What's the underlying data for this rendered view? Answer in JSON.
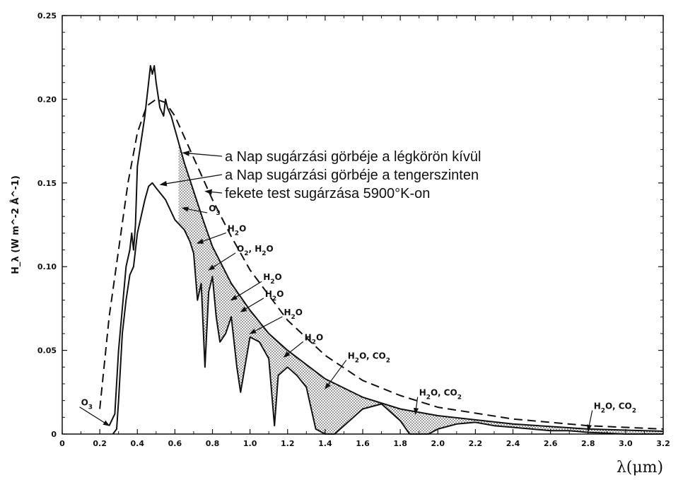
{
  "chart_data": {
    "type": "line",
    "xlabel": "λ(μm)",
    "ylabel": "H_λ (W m^-2 Å^-1)",
    "xlim": [
      0,
      3.2
    ],
    "ylim": [
      0,
      0.25
    ],
    "x_ticks": [
      "0",
      "0.2",
      "0.4",
      "0.6",
      "0.8",
      "1.0",
      "1.2",
      "1.4",
      "1.6",
      "1.8",
      "2.0",
      "2.2",
      "2.4",
      "2.6",
      "2.8",
      "3.0",
      "3.2"
    ],
    "y_ticks": [
      "0",
      "0.05",
      "0.10",
      "0.15",
      "0.20",
      "0.25"
    ],
    "legend": [
      "a Nap sugárzási görbéje a légkörön kívül",
      "a Nap sugárzási görbéje a tengerszinten",
      "fekete test sugárzása 5900°K-on"
    ],
    "series": [
      {
        "name": "a Nap sugárzási görbéje a légkörön kívül",
        "style": "solid",
        "x": [
          0.25,
          0.28,
          0.3,
          0.32,
          0.34,
          0.36,
          0.37,
          0.38,
          0.39,
          0.4,
          0.42,
          0.44,
          0.45,
          0.46,
          0.47,
          0.48,
          0.49,
          0.5,
          0.52,
          0.54,
          0.55,
          0.56,
          0.58,
          0.6,
          0.65,
          0.7,
          0.75,
          0.8,
          0.9,
          1.0,
          1.1,
          1.2,
          1.4,
          1.6,
          1.8,
          2.0,
          2.4,
          2.8,
          3.2
        ],
        "y": [
          0.005,
          0.012,
          0.05,
          0.075,
          0.1,
          0.11,
          0.12,
          0.11,
          0.125,
          0.16,
          0.175,
          0.19,
          0.2,
          0.21,
          0.22,
          0.215,
          0.22,
          0.21,
          0.195,
          0.19,
          0.2,
          0.195,
          0.19,
          0.182,
          0.162,
          0.145,
          0.128,
          0.112,
          0.09,
          0.074,
          0.06,
          0.05,
          0.033,
          0.022,
          0.015,
          0.011,
          0.006,
          0.003,
          0.0017
        ]
      },
      {
        "name": "a Nap sugárzási görbéje a tengerszinten",
        "style": "solid",
        "x": [
          0.27,
          0.29,
          0.3,
          0.32,
          0.34,
          0.36,
          0.38,
          0.4,
          0.42,
          0.44,
          0.46,
          0.48,
          0.5,
          0.55,
          0.6,
          0.65,
          0.68,
          0.7,
          0.72,
          0.74,
          0.76,
          0.78,
          0.8,
          0.82,
          0.84,
          0.87,
          0.9,
          0.93,
          0.95,
          0.98,
          1.0,
          1.05,
          1.1,
          1.13,
          1.15,
          1.2,
          1.25,
          1.3,
          1.35,
          1.4,
          1.45,
          1.5,
          1.6,
          1.7,
          1.8,
          1.85,
          1.9,
          1.95,
          2.0,
          2.1,
          2.2,
          2.3,
          2.4,
          2.5,
          2.6,
          2.7,
          2.8,
          2.9,
          3.0,
          3.2
        ],
        "y": [
          0.0,
          0.003,
          0.02,
          0.06,
          0.08,
          0.095,
          0.1,
          0.12,
          0.13,
          0.14,
          0.148,
          0.15,
          0.147,
          0.14,
          0.128,
          0.122,
          0.115,
          0.108,
          0.08,
          0.09,
          0.04,
          0.085,
          0.094,
          0.07,
          0.055,
          0.06,
          0.07,
          0.04,
          0.025,
          0.045,
          0.058,
          0.055,
          0.045,
          0.005,
          0.035,
          0.04,
          0.035,
          0.028,
          0.003,
          0.0,
          0.0,
          0.005,
          0.015,
          0.018,
          0.008,
          0.0,
          0.0,
          0.0,
          0.003,
          0.006,
          0.007,
          0.005,
          0.004,
          0.003,
          0.002,
          0.002,
          0.001,
          0.0005,
          0.0,
          0.0
        ]
      },
      {
        "name": "fekete test sugárzása 5900°K-on",
        "style": "dashed",
        "x": [
          0.2,
          0.25,
          0.3,
          0.35,
          0.4,
          0.45,
          0.5,
          0.55,
          0.6,
          0.7,
          0.8,
          0.9,
          1.0,
          1.2,
          1.4,
          1.6,
          1.8,
          2.0,
          2.4,
          2.8,
          3.2
        ],
        "y": [
          0.015,
          0.07,
          0.11,
          0.15,
          0.18,
          0.196,
          0.2,
          0.198,
          0.19,
          0.165,
          0.14,
          0.118,
          0.098,
          0.068,
          0.047,
          0.032,
          0.023,
          0.016,
          0.009,
          0.005,
          0.003
        ]
      }
    ],
    "annotations": [
      {
        "label": "O3",
        "x": 0.1,
        "y": 0.017,
        "arrow_to": [
          0.25,
          0.005
        ]
      },
      {
        "label": "O3",
        "x": 0.78,
        "y": 0.133,
        "arrow_to": [
          0.64,
          0.135
        ]
      },
      {
        "label": "H2O",
        "x": 0.88,
        "y": 0.121,
        "arrow_to": [
          0.72,
          0.114
        ]
      },
      {
        "label": "O2, H2O",
        "x": 0.93,
        "y": 0.109,
        "arrow_to": [
          0.78,
          0.098
        ]
      },
      {
        "label": "H2O",
        "x": 1.07,
        "y": 0.092,
        "arrow_to": [
          0.9,
          0.08
        ]
      },
      {
        "label": "H2O",
        "x": 1.08,
        "y": 0.082,
        "arrow_to": [
          0.95,
          0.073
        ]
      },
      {
        "label": "H2O",
        "x": 1.18,
        "y": 0.071,
        "arrow_to": [
          1.0,
          0.06
        ]
      },
      {
        "label": "H2O",
        "x": 1.29,
        "y": 0.056,
        "arrow_to": [
          1.18,
          0.046
        ]
      },
      {
        "label": "H2O, CO2",
        "x": 1.52,
        "y": 0.045,
        "arrow_to": [
          1.4,
          0.027
        ]
      },
      {
        "label": "H2O, CO2",
        "x": 1.9,
        "y": 0.023,
        "arrow_to": [
          1.88,
          0.012
        ]
      },
      {
        "label": "H2O, CO2",
        "x": 2.83,
        "y": 0.015,
        "arrow_to": [
          2.8,
          0.002
        ]
      }
    ],
    "grid": false
  }
}
